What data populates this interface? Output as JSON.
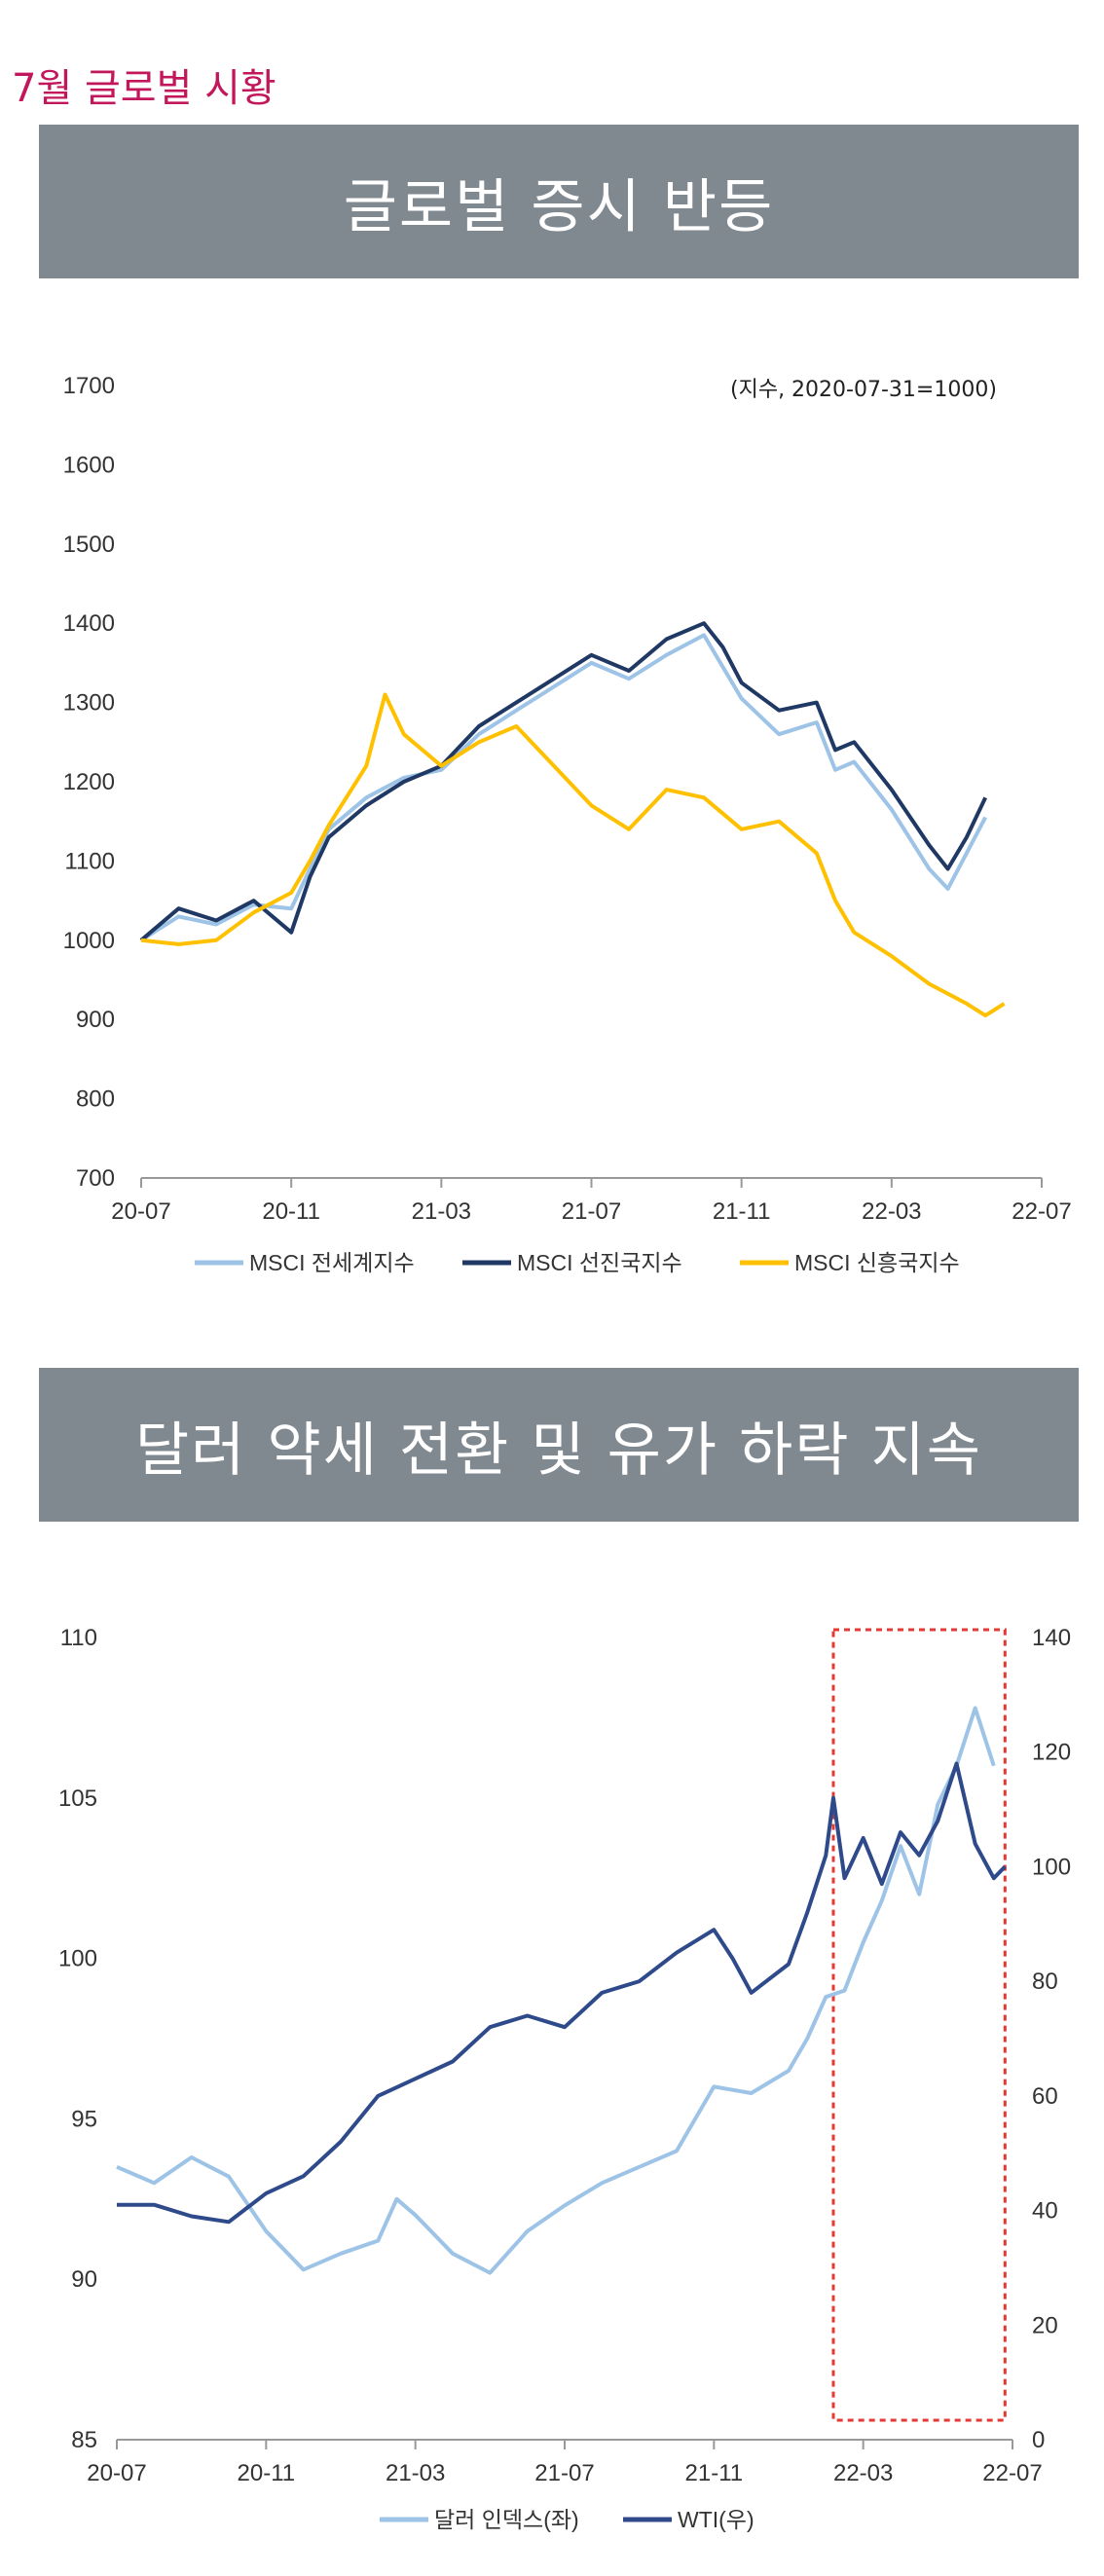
{
  "page_title": "7월 글로벌 시황",
  "banner1": "글로벌 증시 반등",
  "banner2": "달러 약세 전환 및 유가 하락 지속",
  "chart_data": [
    {
      "type": "line",
      "title": "",
      "note": "(지수, 2020-07-31=1000)",
      "x_ticks": [
        "20-07",
        "20-11",
        "21-03",
        "21-07",
        "21-11",
        "22-03",
        "22-07"
      ],
      "y_ticks": [
        700,
        800,
        900,
        1000,
        1100,
        1200,
        1300,
        1400,
        1500,
        1600,
        1700
      ],
      "ylim": [
        700,
        1700
      ],
      "xlim": [
        0,
        24
      ],
      "legend_position": "bottom",
      "series": [
        {
          "name": "MSCI 전세계지수",
          "color": "#9dc3e6",
          "points": [
            [
              0,
              1000
            ],
            [
              1,
              1030
            ],
            [
              2,
              1020
            ],
            [
              3,
              1045
            ],
            [
              4,
              1040
            ],
            [
              4.5,
              1090
            ],
            [
              5,
              1140
            ],
            [
              6,
              1180
            ],
            [
              7,
              1205
            ],
            [
              8,
              1215
            ],
            [
              9,
              1260
            ],
            [
              10,
              1290
            ],
            [
              11,
              1320
            ],
            [
              12,
              1350
            ],
            [
              13,
              1330
            ],
            [
              14,
              1360
            ],
            [
              15,
              1385
            ],
            [
              15.5,
              1345
            ],
            [
              16,
              1305
            ],
            [
              17,
              1260
            ],
            [
              18,
              1275
            ],
            [
              18.5,
              1215
            ],
            [
              19,
              1225
            ],
            [
              20,
              1165
            ],
            [
              21,
              1090
            ],
            [
              21.5,
              1065
            ],
            [
              22,
              1110
            ],
            [
              22.5,
              1155
            ]
          ]
        },
        {
          "name": "MSCI 선진국지수",
          "color": "#1f3864",
          "points": [
            [
              0,
              1000
            ],
            [
              1,
              1040
            ],
            [
              2,
              1025
            ],
            [
              3,
              1050
            ],
            [
              4,
              1010
            ],
            [
              4.5,
              1080
            ],
            [
              5,
              1130
            ],
            [
              6,
              1170
            ],
            [
              7,
              1200
            ],
            [
              8,
              1220
            ],
            [
              9,
              1270
            ],
            [
              10,
              1300
            ],
            [
              11,
              1330
            ],
            [
              12,
              1360
            ],
            [
              13,
              1340
            ],
            [
              14,
              1380
            ],
            [
              15,
              1400
            ],
            [
              15.5,
              1370
            ],
            [
              16,
              1325
            ],
            [
              17,
              1290
            ],
            [
              18,
              1300
            ],
            [
              18.5,
              1240
            ],
            [
              19,
              1250
            ],
            [
              20,
              1190
            ],
            [
              21,
              1120
            ],
            [
              21.5,
              1090
            ],
            [
              22,
              1130
            ],
            [
              22.5,
              1180
            ]
          ]
        },
        {
          "name": "MSCI 신흥국지수",
          "color": "#ffc000",
          "points": [
            [
              0,
              1000
            ],
            [
              1,
              995
            ],
            [
              2,
              1000
            ],
            [
              3,
              1035
            ],
            [
              4,
              1060
            ],
            [
              4.5,
              1100
            ],
            [
              5,
              1145
            ],
            [
              6,
              1220
            ],
            [
              6.5,
              1310
            ],
            [
              7,
              1260
            ],
            [
              8,
              1220
            ],
            [
              9,
              1250
            ],
            [
              10,
              1270
            ],
            [
              11,
              1220
            ],
            [
              12,
              1170
            ],
            [
              13,
              1140
            ],
            [
              14,
              1190
            ],
            [
              15,
              1180
            ],
            [
              16,
              1140
            ],
            [
              17,
              1150
            ],
            [
              18,
              1110
            ],
            [
              18.5,
              1050
            ],
            [
              19,
              1010
            ],
            [
              20,
              980
            ],
            [
              21,
              945
            ],
            [
              22,
              920
            ],
            [
              22.5,
              905
            ],
            [
              23,
              920
            ]
          ]
        }
      ]
    },
    {
      "type": "line",
      "title": "",
      "x_ticks": [
        "20-07",
        "20-11",
        "21-03",
        "21-07",
        "21-11",
        "22-03",
        "22-07"
      ],
      "y_left_ticks": [
        85,
        90,
        95,
        100,
        105,
        110
      ],
      "y_right_ticks": [
        0,
        20,
        40,
        60,
        80,
        100,
        120,
        140
      ],
      "ylim_left": [
        85,
        110
      ],
      "ylim_right": [
        0,
        140
      ],
      "xlim": [
        0,
        24
      ],
      "legend_position": "bottom",
      "highlight_box": {
        "x_range": [
          19.2,
          23.8
        ],
        "color": "#e53935",
        "style": "dashed"
      },
      "series": [
        {
          "name": "달러 인덱스(좌)",
          "axis": "left",
          "color": "#9dc3e6",
          "points": [
            [
              0,
              93.5
            ],
            [
              1,
              93
            ],
            [
              2,
              93.8
            ],
            [
              3,
              93.2
            ],
            [
              4,
              91.5
            ],
            [
              5,
              90.3
            ],
            [
              6,
              90.8
            ],
            [
              7,
              91.2
            ],
            [
              7.5,
              92.5
            ],
            [
              8,
              92
            ],
            [
              9,
              90.8
            ],
            [
              10,
              90.2
            ],
            [
              11,
              91.5
            ],
            [
              12,
              92.3
            ],
            [
              13,
              93
            ],
            [
              14,
              93.5
            ],
            [
              15,
              94
            ],
            [
              16,
              96
            ],
            [
              17,
              95.8
            ],
            [
              18,
              96.5
            ],
            [
              18.5,
              97.5
            ],
            [
              19,
              98.8
            ],
            [
              19.5,
              99
            ],
            [
              20,
              100.5
            ],
            [
              20.5,
              101.8
            ],
            [
              21,
              103.5
            ],
            [
              21.5,
              102
            ],
            [
              22,
              104.8
            ],
            [
              22.5,
              106
            ],
            [
              23,
              107.8
            ],
            [
              23.5,
              106
            ]
          ]
        },
        {
          "name": "WTI(우)",
          "axis": "right",
          "color": "#2f4a8a",
          "points": [
            [
              0,
              41
            ],
            [
              1,
              41
            ],
            [
              2,
              39
            ],
            [
              3,
              38
            ],
            [
              4,
              43
            ],
            [
              5,
              46
            ],
            [
              6,
              52
            ],
            [
              7,
              60
            ],
            [
              8,
              63
            ],
            [
              9,
              66
            ],
            [
              10,
              72
            ],
            [
              11,
              74
            ],
            [
              12,
              72
            ],
            [
              13,
              78
            ],
            [
              14,
              80
            ],
            [
              15,
              85
            ],
            [
              16,
              89
            ],
            [
              16.5,
              84
            ],
            [
              17,
              78
            ],
            [
              18,
              83
            ],
            [
              18.5,
              92
            ],
            [
              19,
              102
            ],
            [
              19.2,
              112
            ],
            [
              19.5,
              98
            ],
            [
              20,
              105
            ],
            [
              20.5,
              97
            ],
            [
              21,
              106
            ],
            [
              21.5,
              102
            ],
            [
              22,
              108
            ],
            [
              22.5,
              118
            ],
            [
              23,
              104
            ],
            [
              23.5,
              98
            ],
            [
              23.8,
              100
            ]
          ]
        }
      ]
    }
  ]
}
